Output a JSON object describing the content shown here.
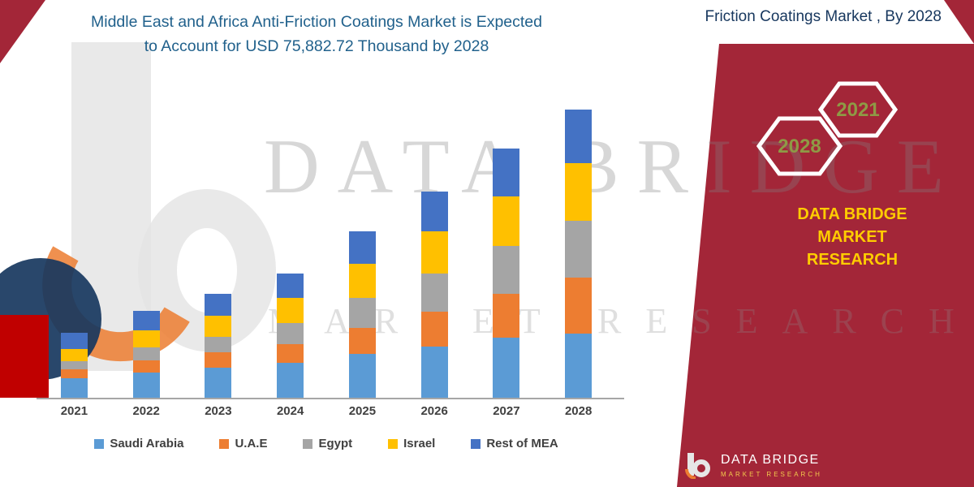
{
  "title": {
    "line1": "Middle East and Africa Anti-Friction Coatings Market is Expected",
    "line2": "to Account for USD 75,882.72 Thousand by 2028"
  },
  "header_right": {
    "text": "Friction Coatings Market , By 2028"
  },
  "watermark": {
    "line1": "DATA BRIDGE",
    "line2": "MARKET RESEARCH"
  },
  "side_panel": {
    "panel_color": "#A32638",
    "hex_label_color": "#8E9A45",
    "accent_yellow": "#FFCC00",
    "hexagons": [
      {
        "label": "2028"
      },
      {
        "label": "2021"
      }
    ],
    "brand_line1": "DATA BRIDGE MARKET",
    "brand_line2": "RESEARCH",
    "footer_brand": "DATA BRIDGE",
    "footer_sub": "MARKET RESEARCH"
  },
  "chart_data": {
    "type": "bar",
    "stacked": true,
    "unit": "USD Thousand",
    "title": "",
    "xlabel": "",
    "ylabel": "",
    "ylim": [
      0,
      80000
    ],
    "grid": false,
    "legend_position": "bottom",
    "categories": [
      "2021",
      "2022",
      "2023",
      "2024",
      "2025",
      "2026",
      "2027",
      "2028"
    ],
    "series": [
      {
        "name": "Saudi Arabia",
        "color": "#5B9BD5",
        "values": [
          5100,
          6700,
          7900,
          9200,
          11500,
          13500,
          15800,
          16800
        ]
      },
      {
        "name": "U.A.E",
        "color": "#ED7D31",
        "values": [
          2300,
          3200,
          4000,
          5000,
          7000,
          9200,
          11500,
          14800
        ]
      },
      {
        "name": "Egypt",
        "color": "#A5A5A5",
        "values": [
          2300,
          3300,
          4200,
          5400,
          7800,
          10100,
          12600,
          15000
        ]
      },
      {
        "name": "Israel",
        "color": "#FFC000",
        "values": [
          3200,
          4600,
          5600,
          6600,
          9000,
          11000,
          13200,
          15282.72
        ]
      },
      {
        "name": "Rest of MEA",
        "color": "#4472C4",
        "values": [
          4200,
          5100,
          5700,
          6500,
          8500,
          10500,
          12500,
          14000
        ]
      }
    ],
    "totals": [
      17100,
      22900,
      27400,
      32700,
      43800,
      54300,
      65600,
      75882.72
    ]
  }
}
